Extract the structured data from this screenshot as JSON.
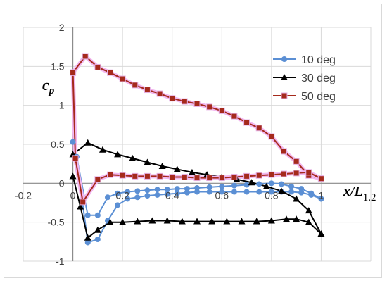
{
  "chart_data": {
    "type": "line",
    "title": "",
    "xlabel_main": "x/L",
    "xlabel_sub": "1.2",
    "ylabel_main": "c",
    "ylabel_sub": "p",
    "xlim": [
      -0.2,
      1.2
    ],
    "ylim": [
      -1,
      2
    ],
    "x_ticks": [
      "-0.2",
      "0",
      "0.2",
      "0.4",
      "0.6",
      "0.8",
      "1"
    ],
    "y_ticks": [
      "-1",
      "-0.5",
      "0",
      "0.5",
      "1",
      "1.5",
      "2"
    ],
    "grid": "vertical and horizontal major gridlines",
    "legend_position": "top-right",
    "series": [
      {
        "name": "10 deg",
        "color": "#5b8fd4",
        "marker": "circle",
        "upper": {
          "x": [
            0.0,
            0.015,
            0.06,
            0.1,
            0.14,
            0.18,
            0.22,
            0.26,
            0.3,
            0.34,
            0.38,
            0.42,
            0.46,
            0.5,
            0.55,
            0.6,
            0.65,
            0.7,
            0.75,
            0.8,
            0.84,
            0.88,
            0.92,
            0.96,
            1.0
          ],
          "y": [
            0.53,
            0.34,
            -0.41,
            -0.41,
            -0.18,
            -0.13,
            -0.11,
            -0.1,
            -0.09,
            -0.08,
            -0.08,
            -0.07,
            -0.07,
            -0.06,
            -0.05,
            -0.04,
            -0.03,
            -0.02,
            -0.01,
            0.0,
            -0.01,
            -0.04,
            -0.07,
            -0.13,
            -0.2
          ]
        },
        "lower": {
          "x": [
            0.0,
            0.015,
            0.06,
            0.1,
            0.14,
            0.18,
            0.22,
            0.26,
            0.3,
            0.34,
            0.38,
            0.42,
            0.46,
            0.5,
            0.55,
            0.6,
            0.65,
            0.7,
            0.75,
            0.8,
            0.84,
            0.88,
            0.92,
            0.96,
            1.0
          ],
          "y": [
            0.53,
            0.34,
            -0.76,
            -0.72,
            -0.48,
            -0.28,
            -0.2,
            -0.18,
            -0.16,
            -0.15,
            -0.14,
            -0.13,
            -0.12,
            -0.11,
            -0.11,
            -0.11,
            -0.11,
            -0.11,
            -0.11,
            -0.11,
            -0.11,
            -0.11,
            -0.12,
            -0.15,
            -0.2
          ]
        }
      },
      {
        "name": "30 deg",
        "color": "#000000",
        "marker": "triangle",
        "upper": {
          "x": [
            0.0,
            0.06,
            0.12,
            0.18,
            0.24,
            0.3,
            0.36,
            0.42,
            0.48,
            0.54,
            0.6,
            0.66,
            0.72,
            0.78,
            0.84,
            0.9,
            0.95,
            1.0
          ],
          "y": [
            0.37,
            0.52,
            0.43,
            0.37,
            0.32,
            0.27,
            0.22,
            0.18,
            0.14,
            0.11,
            0.08,
            0.05,
            0.01,
            -0.04,
            -0.1,
            -0.2,
            -0.35,
            -0.65
          ]
        },
        "lower": {
          "x": [
            0.0,
            0.03,
            0.06,
            0.1,
            0.15,
            0.2,
            0.26,
            0.32,
            0.38,
            0.44,
            0.5,
            0.56,
            0.62,
            0.68,
            0.74,
            0.8,
            0.86,
            0.9,
            0.95,
            1.0
          ],
          "y": [
            0.09,
            -0.3,
            -0.7,
            -0.6,
            -0.5,
            -0.5,
            -0.49,
            -0.48,
            -0.48,
            -0.49,
            -0.49,
            -0.49,
            -0.49,
            -0.49,
            -0.49,
            -0.48,
            -0.46,
            -0.46,
            -0.5,
            -0.65
          ]
        }
      },
      {
        "name": "50 deg",
        "color": "#a52a1c",
        "marker": "square",
        "upper": {
          "x": [
            0.0,
            0.05,
            0.1,
            0.15,
            0.2,
            0.25,
            0.3,
            0.35,
            0.4,
            0.45,
            0.5,
            0.55,
            0.6,
            0.65,
            0.7,
            0.75,
            0.8,
            0.85,
            0.9,
            0.95,
            1.0
          ],
          "y": [
            1.42,
            1.63,
            1.49,
            1.42,
            1.34,
            1.26,
            1.2,
            1.15,
            1.09,
            1.05,
            1.02,
            0.98,
            0.93,
            0.86,
            0.78,
            0.71,
            0.6,
            0.41,
            0.28,
            0.1,
            0.06
          ]
        },
        "lower": {
          "x": [
            0.0,
            0.01,
            0.04,
            0.1,
            0.15,
            0.2,
            0.25,
            0.3,
            0.35,
            0.4,
            0.45,
            0.5,
            0.55,
            0.6,
            0.65,
            0.7,
            0.75,
            0.8,
            0.85,
            0.9,
            0.95,
            1.0
          ],
          "y": [
            1.42,
            0.32,
            -0.24,
            0.05,
            0.11,
            0.1,
            0.09,
            0.09,
            0.09,
            0.08,
            0.08,
            0.07,
            0.07,
            0.07,
            0.08,
            0.09,
            0.1,
            0.11,
            0.12,
            0.13,
            0.14,
            0.06
          ]
        }
      }
    ]
  }
}
